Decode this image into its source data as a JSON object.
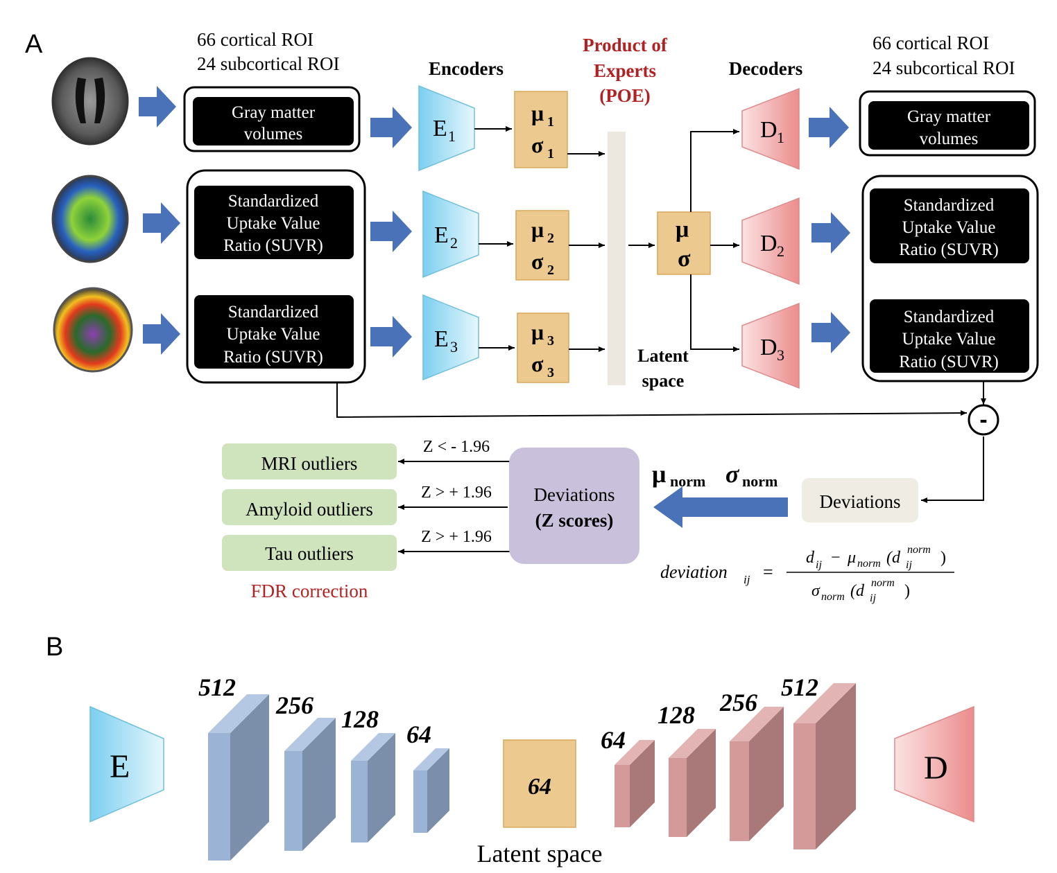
{
  "panel_a": {
    "label": "A",
    "roi_in_line1": "66 cortical ROI",
    "roi_in_line2": "24 subcortical ROI",
    "roi_out_line1": "66 cortical ROI",
    "roi_out_line2": "24 subcortical ROI",
    "encoders_title": "Encoders",
    "decoders_title": "Decoders",
    "poe_line1": "Product of",
    "poe_line2": "Experts",
    "poe_line3": "(POE)",
    "input_gm_line1": "Gray matter",
    "input_gm_line2": "volumes",
    "input_suvr1_line1": "Standardized",
    "input_suvr1_line2": "Uptake Value",
    "input_suvr1_line3": "Ratio (SUVR)",
    "input_suvr2_line1": "Standardized",
    "input_suvr2_line2": "Uptake Value",
    "input_suvr2_line3": "Ratio (SUVR)",
    "output_gm_line1": "Gray matter",
    "output_gm_line2": "volumes",
    "output_suvr1_line1": "Standardized",
    "output_suvr1_line2": "Uptake Value",
    "output_suvr1_line3": "Ratio (SUVR)",
    "output_suvr2_line1": "Standardized",
    "output_suvr2_line2": "Uptake Value",
    "output_suvr2_line3": "Ratio (SUVR)",
    "enc1": "E",
    "enc1_sub": "1",
    "enc2": "E",
    "enc2_sub": "2",
    "enc3": "E",
    "enc3_sub": "3",
    "dec1": "D",
    "dec1_sub": "1",
    "dec2": "D",
    "dec2_sub": "2",
    "dec3": "D",
    "dec3_sub": "3",
    "mu": "μ",
    "sigma": "σ",
    "sub1": "1",
    "sub2": "2",
    "sub3": "3",
    "latent_line1": "Latent",
    "latent_line2": "space",
    "minus": "-",
    "mri_outliers": "MRI outliers",
    "amyloid_outliers": "Amyloid outliers",
    "tau_outliers": "Tau outliers",
    "z_mri": "Z < - 1.96",
    "z_amyloid": "Z > + 1.96",
    "z_tau": "Z > + 1.96",
    "fdr": "FDR correction",
    "deviations_z_line1": "Deviations",
    "deviations_z_line2": "(Z scores)",
    "deviations": "Deviations",
    "mu_norm_sym": "μ",
    "sigma_norm_sym": "σ",
    "norm_sub": "norm",
    "formula_lhs": "deviation",
    "formula_lhs_sub": "ij",
    "formula_eq": "=",
    "formula_num": "d",
    "formula_num_sub": "ij",
    "formula_minus": "−",
    "formula_mu": "μ",
    "formula_norm": "norm",
    "formula_open": "(d",
    "formula_sup": "norm",
    "formula_sub": "ij",
    "formula_close": ")",
    "formula_den_sigma": "σ",
    "formula_den_norm": "norm",
    "formula_den_open": "(d",
    "formula_den_sup": "norm",
    "formula_den_sub": "ij",
    "formula_den_close": ")"
  },
  "panel_b": {
    "label": "B",
    "encoder": "E",
    "decoder": "D",
    "enc_layers": [
      "512",
      "256",
      "128",
      "64"
    ],
    "latent_value": "64",
    "dec_layers": [
      "64",
      "128",
      "256",
      "512"
    ],
    "latent_caption": "Latent space"
  },
  "colors": {
    "arrow_blue": "#4a72b8",
    "encoder_fill": "#9fdcf0",
    "decoder_fill": "#f2a8a8",
    "latent_fill": "#ecc98e",
    "poe_bar": "#ece8df",
    "title_red": "#b22222",
    "green_box": "#cfe3bd",
    "purple_box": "#c9c0dc",
    "beige_box": "#efede3",
    "layer_blue_front": "#9bb4d6",
    "layer_blue_side": "#7b8fab",
    "layer_red_front": "#d49a9a",
    "layer_red_side": "#a97979"
  }
}
